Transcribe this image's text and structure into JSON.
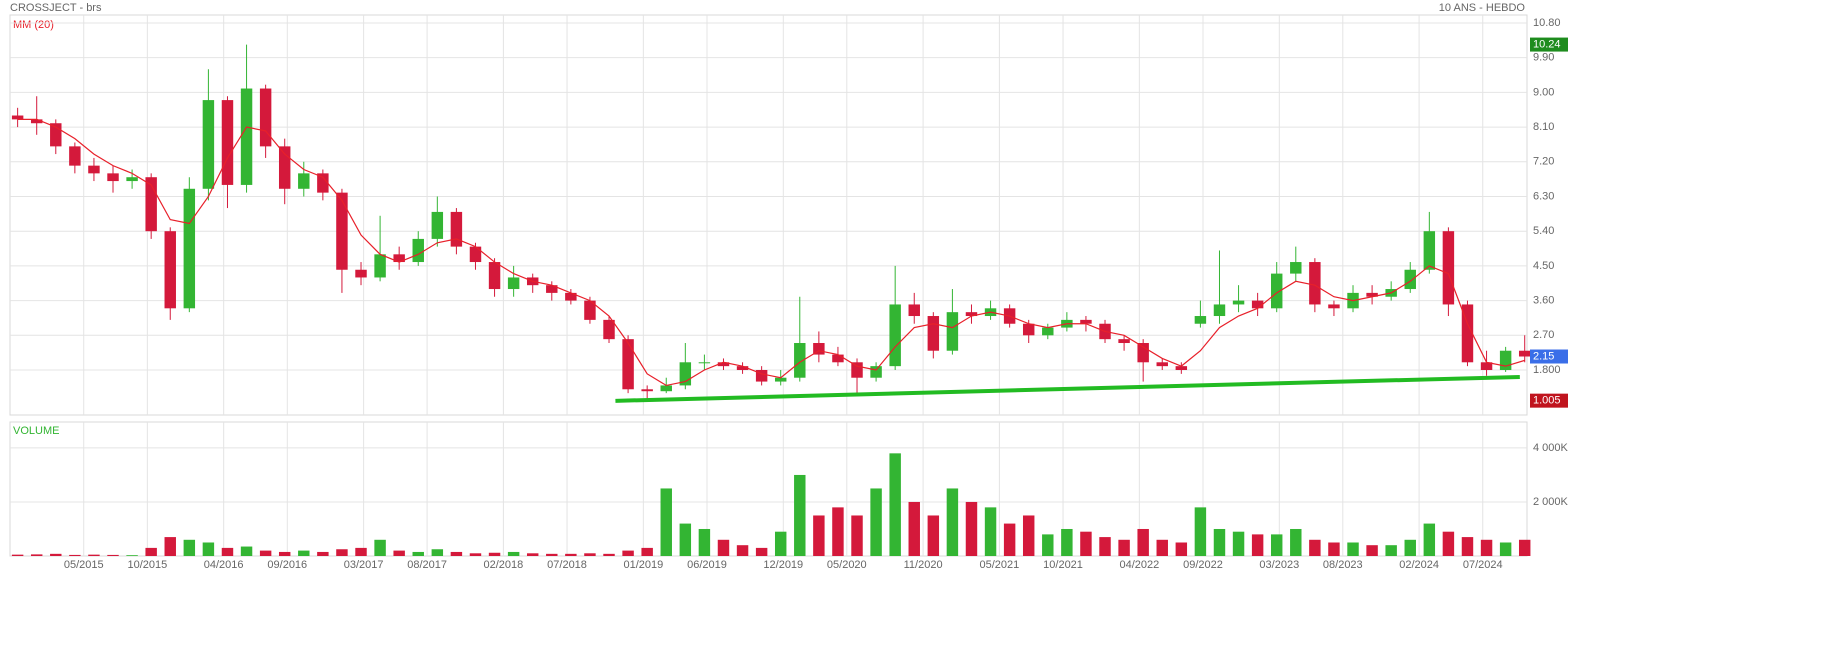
{
  "chart_data": {
    "type": "candlestick",
    "title": "CROSSJECT - brs",
    "subtitle": "10 ANS - HEBDO",
    "up_color": "#33b533",
    "down_color": "#d4193b",
    "grid": true,
    "x": [
      2014.9,
      2015.025,
      2015.15,
      2015.275,
      2015.4,
      2015.525,
      2015.65,
      2015.775,
      2015.9,
      2016.025,
      2016.15,
      2016.275,
      2016.4,
      2016.525,
      2016.65,
      2016.775,
      2016.9,
      2017.025,
      2017.15,
      2017.275,
      2017.4,
      2017.525,
      2017.65,
      2017.775,
      2017.9,
      2018.025,
      2018.15,
      2018.275,
      2018.4,
      2018.525,
      2018.65,
      2018.775,
      2018.9,
      2019.025,
      2019.15,
      2019.275,
      2019.4,
      2019.525,
      2019.65,
      2019.775,
      2019.9,
      2020.025,
      2020.15,
      2020.275,
      2020.4,
      2020.525,
      2020.65,
      2020.775,
      2020.9,
      2021.025,
      2021.15,
      2021.275,
      2021.4,
      2021.525,
      2021.65,
      2021.775,
      2021.9,
      2022.025,
      2022.15,
      2022.275,
      2022.4,
      2022.525,
      2022.65,
      2022.775,
      2022.9,
      2023.025,
      2023.15,
      2023.275,
      2023.4,
      2023.525,
      2023.65,
      2023.775,
      2023.9,
      2024.025,
      2024.15,
      2024.275,
      2024.4,
      2024.525,
      2024.65,
      2024.775
    ],
    "open": [
      8.4,
      8.3,
      8.2,
      7.6,
      7.1,
      6.9,
      6.7,
      6.8,
      5.4,
      3.4,
      6.5,
      8.8,
      6.6,
      9.1,
      7.6,
      6.5,
      6.9,
      6.4,
      4.4,
      4.2,
      4.8,
      4.6,
      5.2,
      5.9,
      5.0,
      4.6,
      3.9,
      4.2,
      4.0,
      3.8,
      3.6,
      3.1,
      2.6,
      1.3,
      1.25,
      1.4,
      2.0,
      2.0,
      1.9,
      1.8,
      1.5,
      1.6,
      2.5,
      2.2,
      2.0,
      1.6,
      1.9,
      3.5,
      3.2,
      2.3,
      3.3,
      3.2,
      3.4,
      3.0,
      2.7,
      2.9,
      3.1,
      3.0,
      2.6,
      2.5,
      2.0,
      1.9,
      3.0,
      3.2,
      3.5,
      3.6,
      3.4,
      4.3,
      4.6,
      3.5,
      3.4,
      3.8,
      3.7,
      3.9,
      4.4,
      5.4,
      3.5,
      2.0,
      1.8,
      2.3
    ],
    "high": [
      8.6,
      8.9,
      8.3,
      7.7,
      7.3,
      7.1,
      7.0,
      6.9,
      5.5,
      6.8,
      9.6,
      8.9,
      10.24,
      9.2,
      7.8,
      7.2,
      7.0,
      6.5,
      4.6,
      5.8,
      5.0,
      5.4,
      6.3,
      6.0,
      5.1,
      4.7,
      4.5,
      4.3,
      4.1,
      3.9,
      3.7,
      3.2,
      2.7,
      1.4,
      1.6,
      2.5,
      2.2,
      2.1,
      2.0,
      1.9,
      1.8,
      3.7,
      2.8,
      2.4,
      2.1,
      2.0,
      4.5,
      3.8,
      3.3,
      3.9,
      3.5,
      3.6,
      3.5,
      3.1,
      3.0,
      3.3,
      3.2,
      3.1,
      2.7,
      2.6,
      2.1,
      2.0,
      3.6,
      4.9,
      4.0,
      3.8,
      4.6,
      5.0,
      4.7,
      3.6,
      4.0,
      4.0,
      4.1,
      4.6,
      5.9,
      5.5,
      3.6,
      2.3,
      2.4,
      2.7
    ],
    "low": [
      8.1,
      7.9,
      7.4,
      6.9,
      6.7,
      6.4,
      6.5,
      5.2,
      3.1,
      3.3,
      6.2,
      6.0,
      6.4,
      7.3,
      6.1,
      6.3,
      6.2,
      3.8,
      4.0,
      4.1,
      4.4,
      4.5,
      5.0,
      4.8,
      4.4,
      3.7,
      3.7,
      3.8,
      3.6,
      3.5,
      3.0,
      2.5,
      1.2,
      1.005,
      1.2,
      1.3,
      1.8,
      1.8,
      1.7,
      1.4,
      1.4,
      1.5,
      2.0,
      1.9,
      1.2,
      1.5,
      1.8,
      3.0,
      2.1,
      2.2,
      3.0,
      3.1,
      2.9,
      2.5,
      2.6,
      2.8,
      2.8,
      2.5,
      2.3,
      1.5,
      1.8,
      1.7,
      2.9,
      3.0,
      3.3,
      3.2,
      3.3,
      4.1,
      3.3,
      3.2,
      3.3,
      3.5,
      3.6,
      3.8,
      4.3,
      3.2,
      1.9,
      1.65,
      1.75,
      2.0
    ],
    "close": [
      8.3,
      8.2,
      7.6,
      7.1,
      6.9,
      6.7,
      6.8,
      5.4,
      3.4,
      6.5,
      8.8,
      6.6,
      9.1,
      7.6,
      6.5,
      6.9,
      6.4,
      4.4,
      4.2,
      4.8,
      4.6,
      5.2,
      5.9,
      5.0,
      4.6,
      3.9,
      4.2,
      4.0,
      3.8,
      3.6,
      3.1,
      2.6,
      1.3,
      1.25,
      1.4,
      2.0,
      2.0,
      1.9,
      1.8,
      1.5,
      1.6,
      2.5,
      2.2,
      2.0,
      1.6,
      1.9,
      3.5,
      3.2,
      2.3,
      3.3,
      3.2,
      3.4,
      3.0,
      2.7,
      2.9,
      3.1,
      3.0,
      2.6,
      2.5,
      2.0,
      1.9,
      1.8,
      3.2,
      3.5,
      3.6,
      3.4,
      4.3,
      4.6,
      3.5,
      3.4,
      3.8,
      3.7,
      3.9,
      4.4,
      5.4,
      3.5,
      2.0,
      1.8,
      2.3,
      2.15
    ],
    "xlim": [
      2014.85,
      2024.79
    ],
    "xticks": [
      {
        "value": 2015.333,
        "label": "05/2015"
      },
      {
        "value": 2015.75,
        "label": "10/2015"
      },
      {
        "value": 2016.25,
        "label": "04/2016"
      },
      {
        "value": 2016.667,
        "label": "09/2016"
      },
      {
        "value": 2017.167,
        "label": "03/2017"
      },
      {
        "value": 2017.583,
        "label": "08/2017"
      },
      {
        "value": 2018.083,
        "label": "02/2018"
      },
      {
        "value": 2018.5,
        "label": "07/2018"
      },
      {
        "value": 2019.0,
        "label": "01/2019"
      },
      {
        "value": 2019.417,
        "label": "06/2019"
      },
      {
        "value": 2019.917,
        "label": "12/2019"
      },
      {
        "value": 2020.333,
        "label": "05/2020"
      },
      {
        "value": 2020.833,
        "label": "11/2020"
      },
      {
        "value": 2021.333,
        "label": "05/2021"
      },
      {
        "value": 2021.75,
        "label": "10/2021"
      },
      {
        "value": 2022.25,
        "label": "04/2022"
      },
      {
        "value": 2022.667,
        "label": "09/2022"
      },
      {
        "value": 2023.167,
        "label": "03/2023"
      },
      {
        "value": 2023.583,
        "label": "08/2023"
      },
      {
        "value": 2024.083,
        "label": "02/2024"
      },
      {
        "value": 2024.5,
        "label": "07/2024"
      }
    ],
    "ylim": [
      0.633,
      11.007
    ],
    "yticks": [
      {
        "value": 10.8,
        "label": "10.80"
      },
      {
        "value": 9.9,
        "label": "9.90"
      },
      {
        "value": 9.0,
        "label": "9.00"
      },
      {
        "value": 8.1,
        "label": "8.10"
      },
      {
        "value": 7.2,
        "label": "7.20"
      },
      {
        "value": 6.3,
        "label": "6.30"
      },
      {
        "value": 5.4,
        "label": "5.40"
      },
      {
        "value": 4.5,
        "label": "4.50"
      },
      {
        "value": 3.6,
        "label": "3.60"
      },
      {
        "value": 2.7,
        "label": "2.70"
      },
      {
        "value": 1.8,
        "label": "1.800"
      }
    ],
    "moving_average": {
      "name": "MM (20)",
      "color": "#e8202a",
      "values": [
        8.3,
        8.3,
        8.1,
        7.8,
        7.4,
        7.1,
        6.9,
        6.6,
        5.7,
        5.6,
        6.3,
        7.3,
        8.1,
        8.0,
        7.4,
        7.0,
        6.8,
        6.2,
        5.3,
        4.8,
        4.6,
        4.8,
        5.1,
        5.2,
        5.0,
        4.6,
        4.3,
        4.1,
        4.0,
        3.8,
        3.6,
        3.2,
        2.5,
        1.7,
        1.4,
        1.5,
        1.8,
        2.0,
        1.9,
        1.7,
        1.6,
        2.0,
        2.3,
        2.2,
        1.9,
        1.8,
        2.4,
        2.9,
        3.0,
        2.9,
        3.2,
        3.3,
        3.2,
        3.0,
        2.9,
        3.0,
        3.0,
        2.8,
        2.7,
        2.4,
        2.1,
        1.9,
        2.3,
        2.9,
        3.2,
        3.4,
        3.8,
        4.1,
        4.0,
        3.7,
        3.6,
        3.7,
        3.8,
        4.1,
        4.5,
        4.3,
        3.0,
        2.0,
        1.9,
        2.05
      ]
    },
    "trendline": {
      "color": "#22bb22",
      "x": [
        2018.817,
        2024.743
      ],
      "values": [
        1.0,
        1.62
      ]
    },
    "price_markers": [
      {
        "value": 10.24,
        "color": "#1e8c1e"
      },
      {
        "value": 2.15,
        "color": "#3a6ee8"
      },
      {
        "value": 1.005,
        "color": "#c0141e"
      }
    ],
    "volume": {
      "name": "VOLUME",
      "values": [
        50,
        60,
        80,
        40,
        50,
        40,
        30,
        300,
        700,
        600,
        500,
        300,
        350,
        200,
        150,
        200,
        150,
        250,
        300,
        600,
        200,
        150,
        250,
        150,
        100,
        120,
        150,
        100,
        80,
        80,
        100,
        80,
        200,
        300,
        2500,
        1200,
        1000,
        600,
        400,
        300,
        900,
        3000,
        1500,
        1800,
        1500,
        2500,
        3800,
        2000,
        1500,
        2500,
        2000,
        1800,
        1200,
        1500,
        800,
        1000,
        900,
        700,
        600,
        1000,
        600,
        500,
        1800,
        1000,
        900,
        800,
        800,
        1000,
        600,
        500,
        500,
        400,
        400,
        600,
        1200,
        900,
        700,
        600,
        500,
        600
      ],
      "ylim": [
        0,
        4960
      ],
      "yticks": [
        {
          "value": 2000,
          "label": "2 000K"
        },
        {
          "value": 4000,
          "label": "4 000K"
        }
      ]
    }
  }
}
